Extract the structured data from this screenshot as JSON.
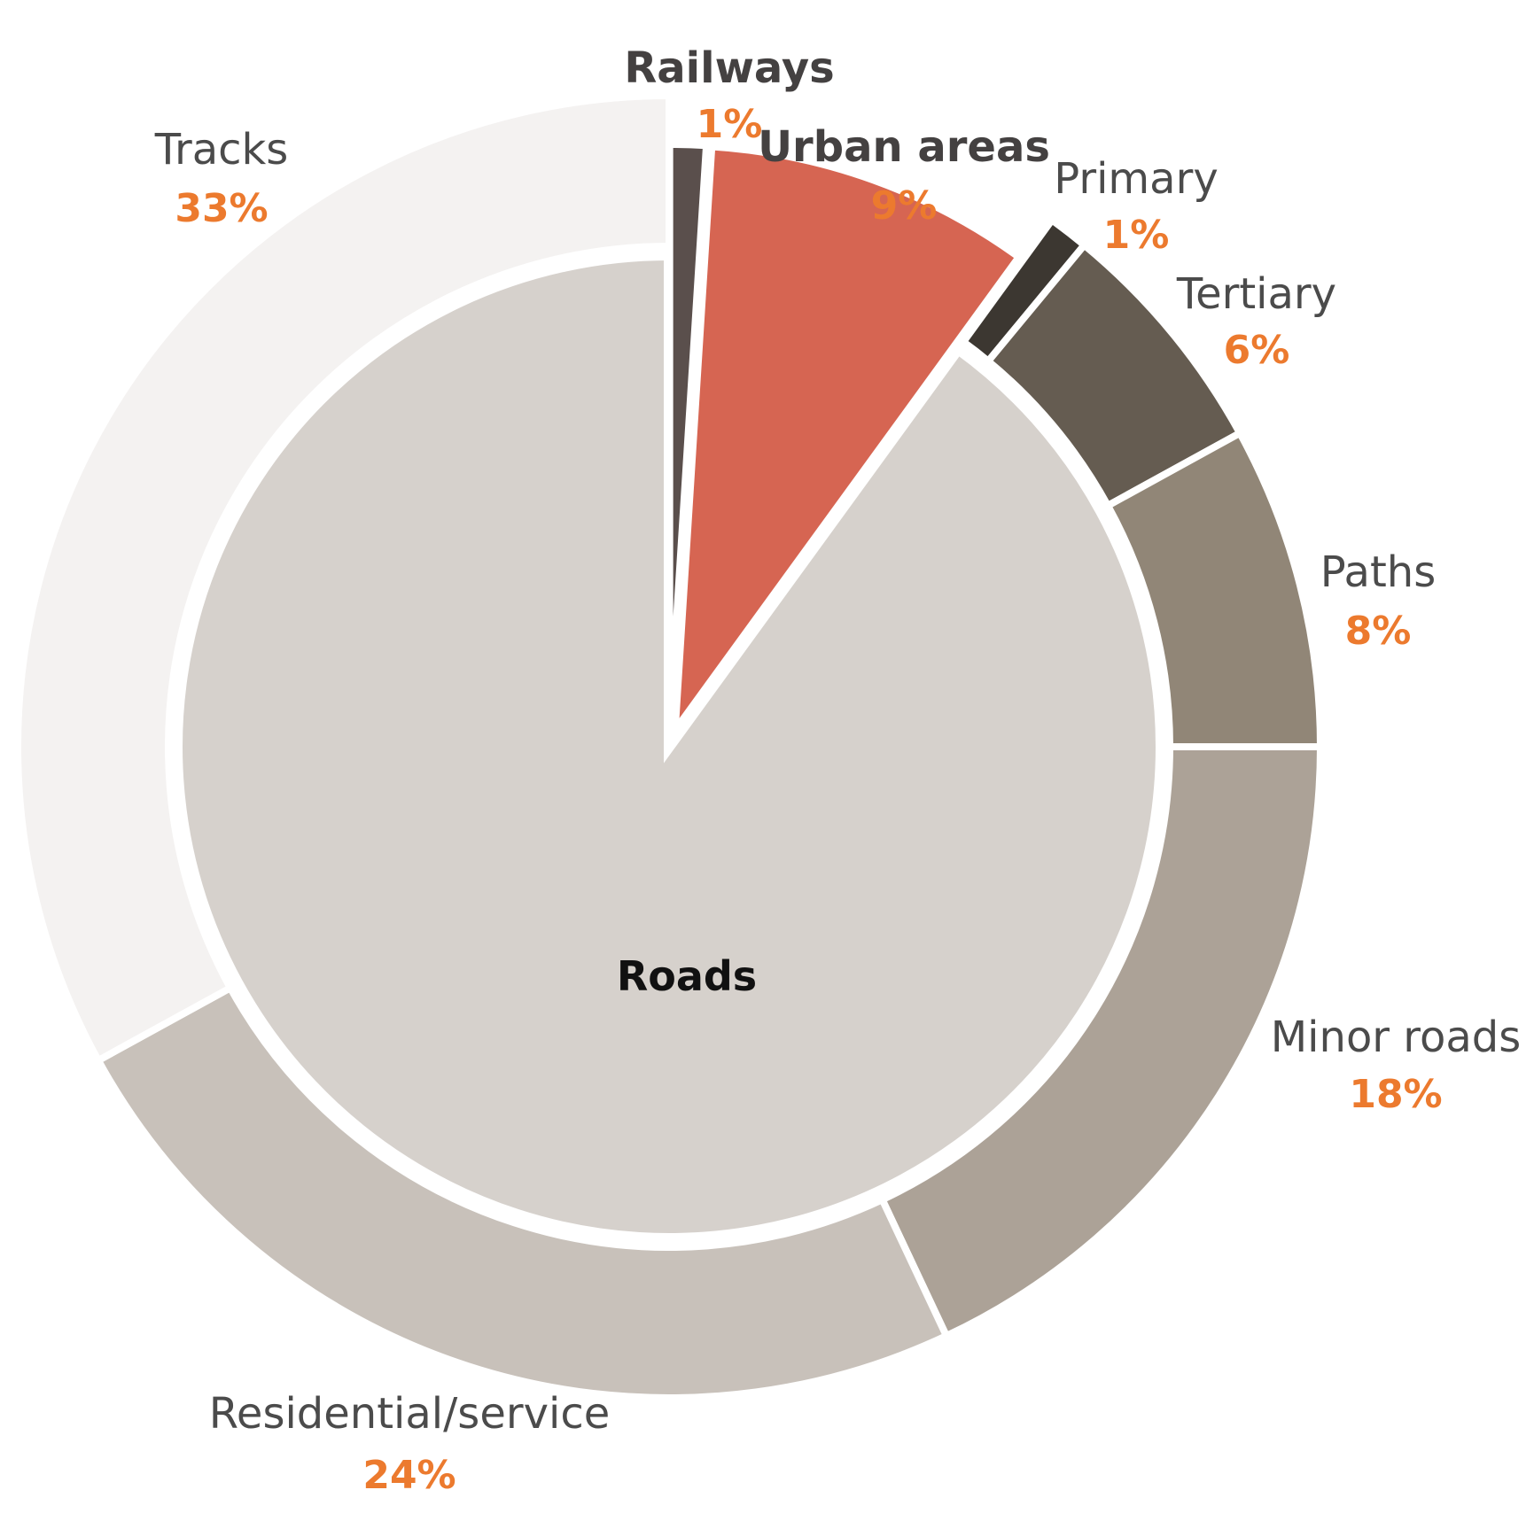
{
  "chart_data": {
    "type": "pie",
    "segments": [
      {
        "label": "Railways",
        "value": 1,
        "value_label": "1%",
        "color": "#5a4f4c",
        "ring": "exploded",
        "bold": true
      },
      {
        "label": "Urban areas",
        "value": 9,
        "value_label": "9%",
        "color": "#d66552",
        "ring": "exploded",
        "bold": true
      },
      {
        "label": "Primary",
        "value": 1,
        "value_label": "1%",
        "color": "#3c3731",
        "ring": "outer",
        "bold": false
      },
      {
        "label": "Tertiary",
        "value": 6,
        "value_label": "6%",
        "color": "#655c51",
        "ring": "outer",
        "bold": false
      },
      {
        "label": "Paths",
        "value": 8,
        "value_label": "8%",
        "color": "#918677",
        "ring": "outer",
        "bold": false
      },
      {
        "label": "Minor roads",
        "value": 18,
        "value_label": "18%",
        "color": "#aca297",
        "ring": "outer",
        "bold": false
      },
      {
        "label": "Residential/service",
        "value": 24,
        "value_label": "24%",
        "color": "#c8c1ba",
        "ring": "outer",
        "bold": false
      },
      {
        "label": "Tracks",
        "value": 33,
        "value_label": "33%",
        "color": "#f4f2f1",
        "ring": "outer",
        "bold": false
      }
    ],
    "inner_group": {
      "label": "Roads",
      "color": "#d6d1cc"
    },
    "value_label_color": "#ec7a2e"
  }
}
